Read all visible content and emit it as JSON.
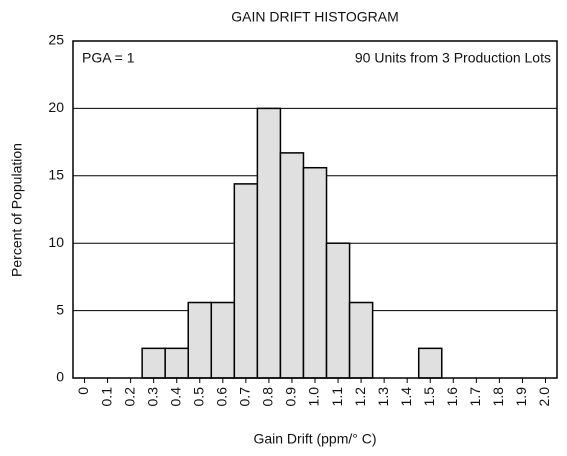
{
  "chart_data": {
    "type": "bar",
    "title": "GAIN DRIFT HISTOGRAM",
    "x_label": "Gain Drift (ppm/° C)",
    "y_label": "Percent of Population",
    "annotations": [
      "PGA = 1",
      "90 Units from 3 Production Lots"
    ],
    "categories": [
      "0",
      "0.1",
      "0.2",
      "0.3",
      "0.4",
      "0.5",
      "0.6",
      "0.7",
      "0.8",
      "0.9",
      "1.0",
      "1.1",
      "1.2",
      "1.3",
      "1.4",
      "1.5",
      "1.6",
      "1.7",
      "1.8",
      "1.9",
      "2.0"
    ],
    "values": [
      0,
      0,
      0,
      2.2,
      2.2,
      5.6,
      5.6,
      14.4,
      20,
      16.7,
      15.6,
      10,
      5.6,
      0,
      0,
      2.2,
      0,
      0,
      0,
      0,
      0
    ],
    "color": "#e0e0e0",
    "ylim": [
      0,
      25
    ],
    "yticks": [
      0,
      5,
      10,
      15,
      20,
      25
    ],
    "grid": true
  }
}
